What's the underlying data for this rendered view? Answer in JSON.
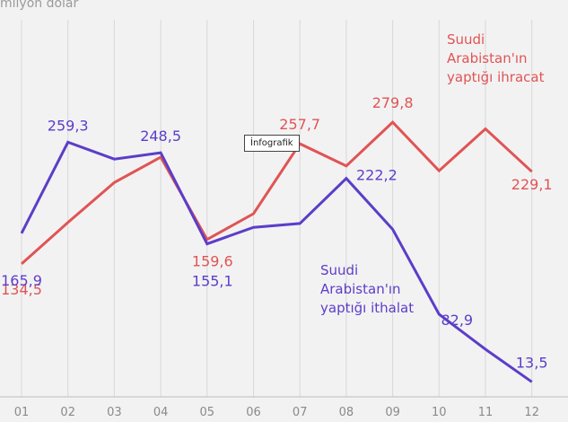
{
  "unit_label": "milyon dolar",
  "tooltip": "İnfografik",
  "chart_data": {
    "type": "line",
    "x": [
      "01",
      "02",
      "03",
      "04",
      "05",
      "06",
      "07",
      "08",
      "09",
      "10",
      "11",
      "12"
    ],
    "ylim": [
      0,
      300
    ],
    "grid": true,
    "series": [
      {
        "name": "Suudi Arabistan'ın yaptığı ihracat",
        "color": "#e05454",
        "values": [
          134.5,
          177,
          218,
          244,
          159.6,
          186,
          257.7,
          235,
          279.8,
          230,
          273,
          229.1
        ]
      },
      {
        "name": "Suudi Arabistan'ın yaptığı ithalat",
        "color": "#5b3ec8",
        "values": [
          165.9,
          259.3,
          242,
          248.5,
          155.1,
          172,
          176,
          222.2,
          170,
          82.9,
          47,
          13.5
        ]
      }
    ],
    "data_labels": [
      {
        "series": 0,
        "index": 0,
        "text": "134,5"
      },
      {
        "series": 0,
        "index": 4,
        "text": "159,6"
      },
      {
        "series": 0,
        "index": 6,
        "text": "257,7"
      },
      {
        "series": 0,
        "index": 8,
        "text": "279,8"
      },
      {
        "series": 0,
        "index": 11,
        "text": "229,1"
      },
      {
        "series": 1,
        "index": 0,
        "text": "165,9"
      },
      {
        "series": 1,
        "index": 1,
        "text": "259,3"
      },
      {
        "series": 1,
        "index": 3,
        "text": "248,5"
      },
      {
        "series": 1,
        "index": 4,
        "text": "155,1"
      },
      {
        "series": 1,
        "index": 7,
        "text": "222,2"
      },
      {
        "series": 1,
        "index": 9,
        "text": "82,9"
      },
      {
        "series": 1,
        "index": 11,
        "text": "13,5"
      }
    ],
    "series_annotations": [
      {
        "series": 0,
        "lines": [
          "Suudi",
          "Arabistan'ın",
          "yaptığı ihracat"
        ]
      },
      {
        "series": 1,
        "lines": [
          "Suudi",
          "Arabistan'ın",
          "yaptığı ithalat"
        ]
      }
    ]
  }
}
